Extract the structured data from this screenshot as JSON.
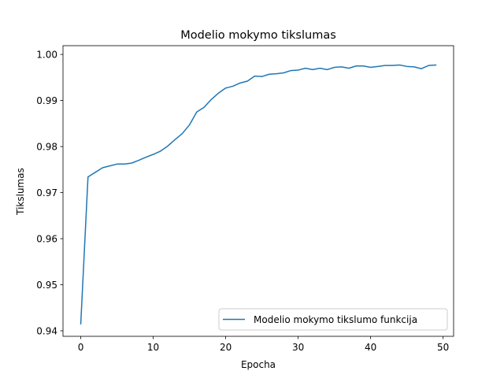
{
  "chart_data": {
    "type": "line",
    "title": "Modelio mokymo tikslumas",
    "xlabel": "Epocha",
    "ylabel": "Tikslumas",
    "xlim": [
      -2.45,
      51.45
    ],
    "ylim": [
      0.9388,
      1.0019
    ],
    "xticks": [
      0,
      10,
      20,
      30,
      40,
      50
    ],
    "xtick_labels": [
      "0",
      "10",
      "20",
      "30",
      "40",
      "50"
    ],
    "yticks": [
      0.94,
      0.95,
      0.96,
      0.97,
      0.98,
      0.99,
      1.0
    ],
    "ytick_labels": [
      "0.94",
      "0.95",
      "0.96",
      "0.97",
      "0.98",
      "0.99",
      "1.00"
    ],
    "grid": false,
    "legend_position": "lower right",
    "series": [
      {
        "name": "Modelio mokymo tikslumo funkcija",
        "color": "#1f77b4",
        "x": [
          0,
          1,
          2,
          3,
          4,
          5,
          6,
          7,
          8,
          9,
          10,
          11,
          12,
          13,
          14,
          15,
          16,
          17,
          18,
          19,
          20,
          21,
          22,
          23,
          24,
          25,
          26,
          27,
          28,
          29,
          30,
          31,
          32,
          33,
          34,
          35,
          36,
          37,
          38,
          39,
          40,
          41,
          42,
          43,
          44,
          45,
          46,
          47,
          48,
          49
        ],
        "y": [
          0.9415,
          0.9734,
          0.9744,
          0.9754,
          0.9758,
          0.9762,
          0.9762,
          0.9764,
          0.977,
          0.9777,
          0.9783,
          0.979,
          0.9801,
          0.9815,
          0.9828,
          0.9847,
          0.9875,
          0.9885,
          0.9902,
          0.9916,
          0.9927,
          0.9931,
          0.9938,
          0.9942,
          0.9953,
          0.9952,
          0.9957,
          0.9958,
          0.996,
          0.9965,
          0.9966,
          0.997,
          0.9967,
          0.997,
          0.9967,
          0.9972,
          0.9973,
          0.997,
          0.9975,
          0.9975,
          0.9972,
          0.9974,
          0.9976,
          0.9976,
          0.9977,
          0.9974,
          0.9973,
          0.9969,
          0.9976,
          0.9977
        ]
      }
    ]
  }
}
